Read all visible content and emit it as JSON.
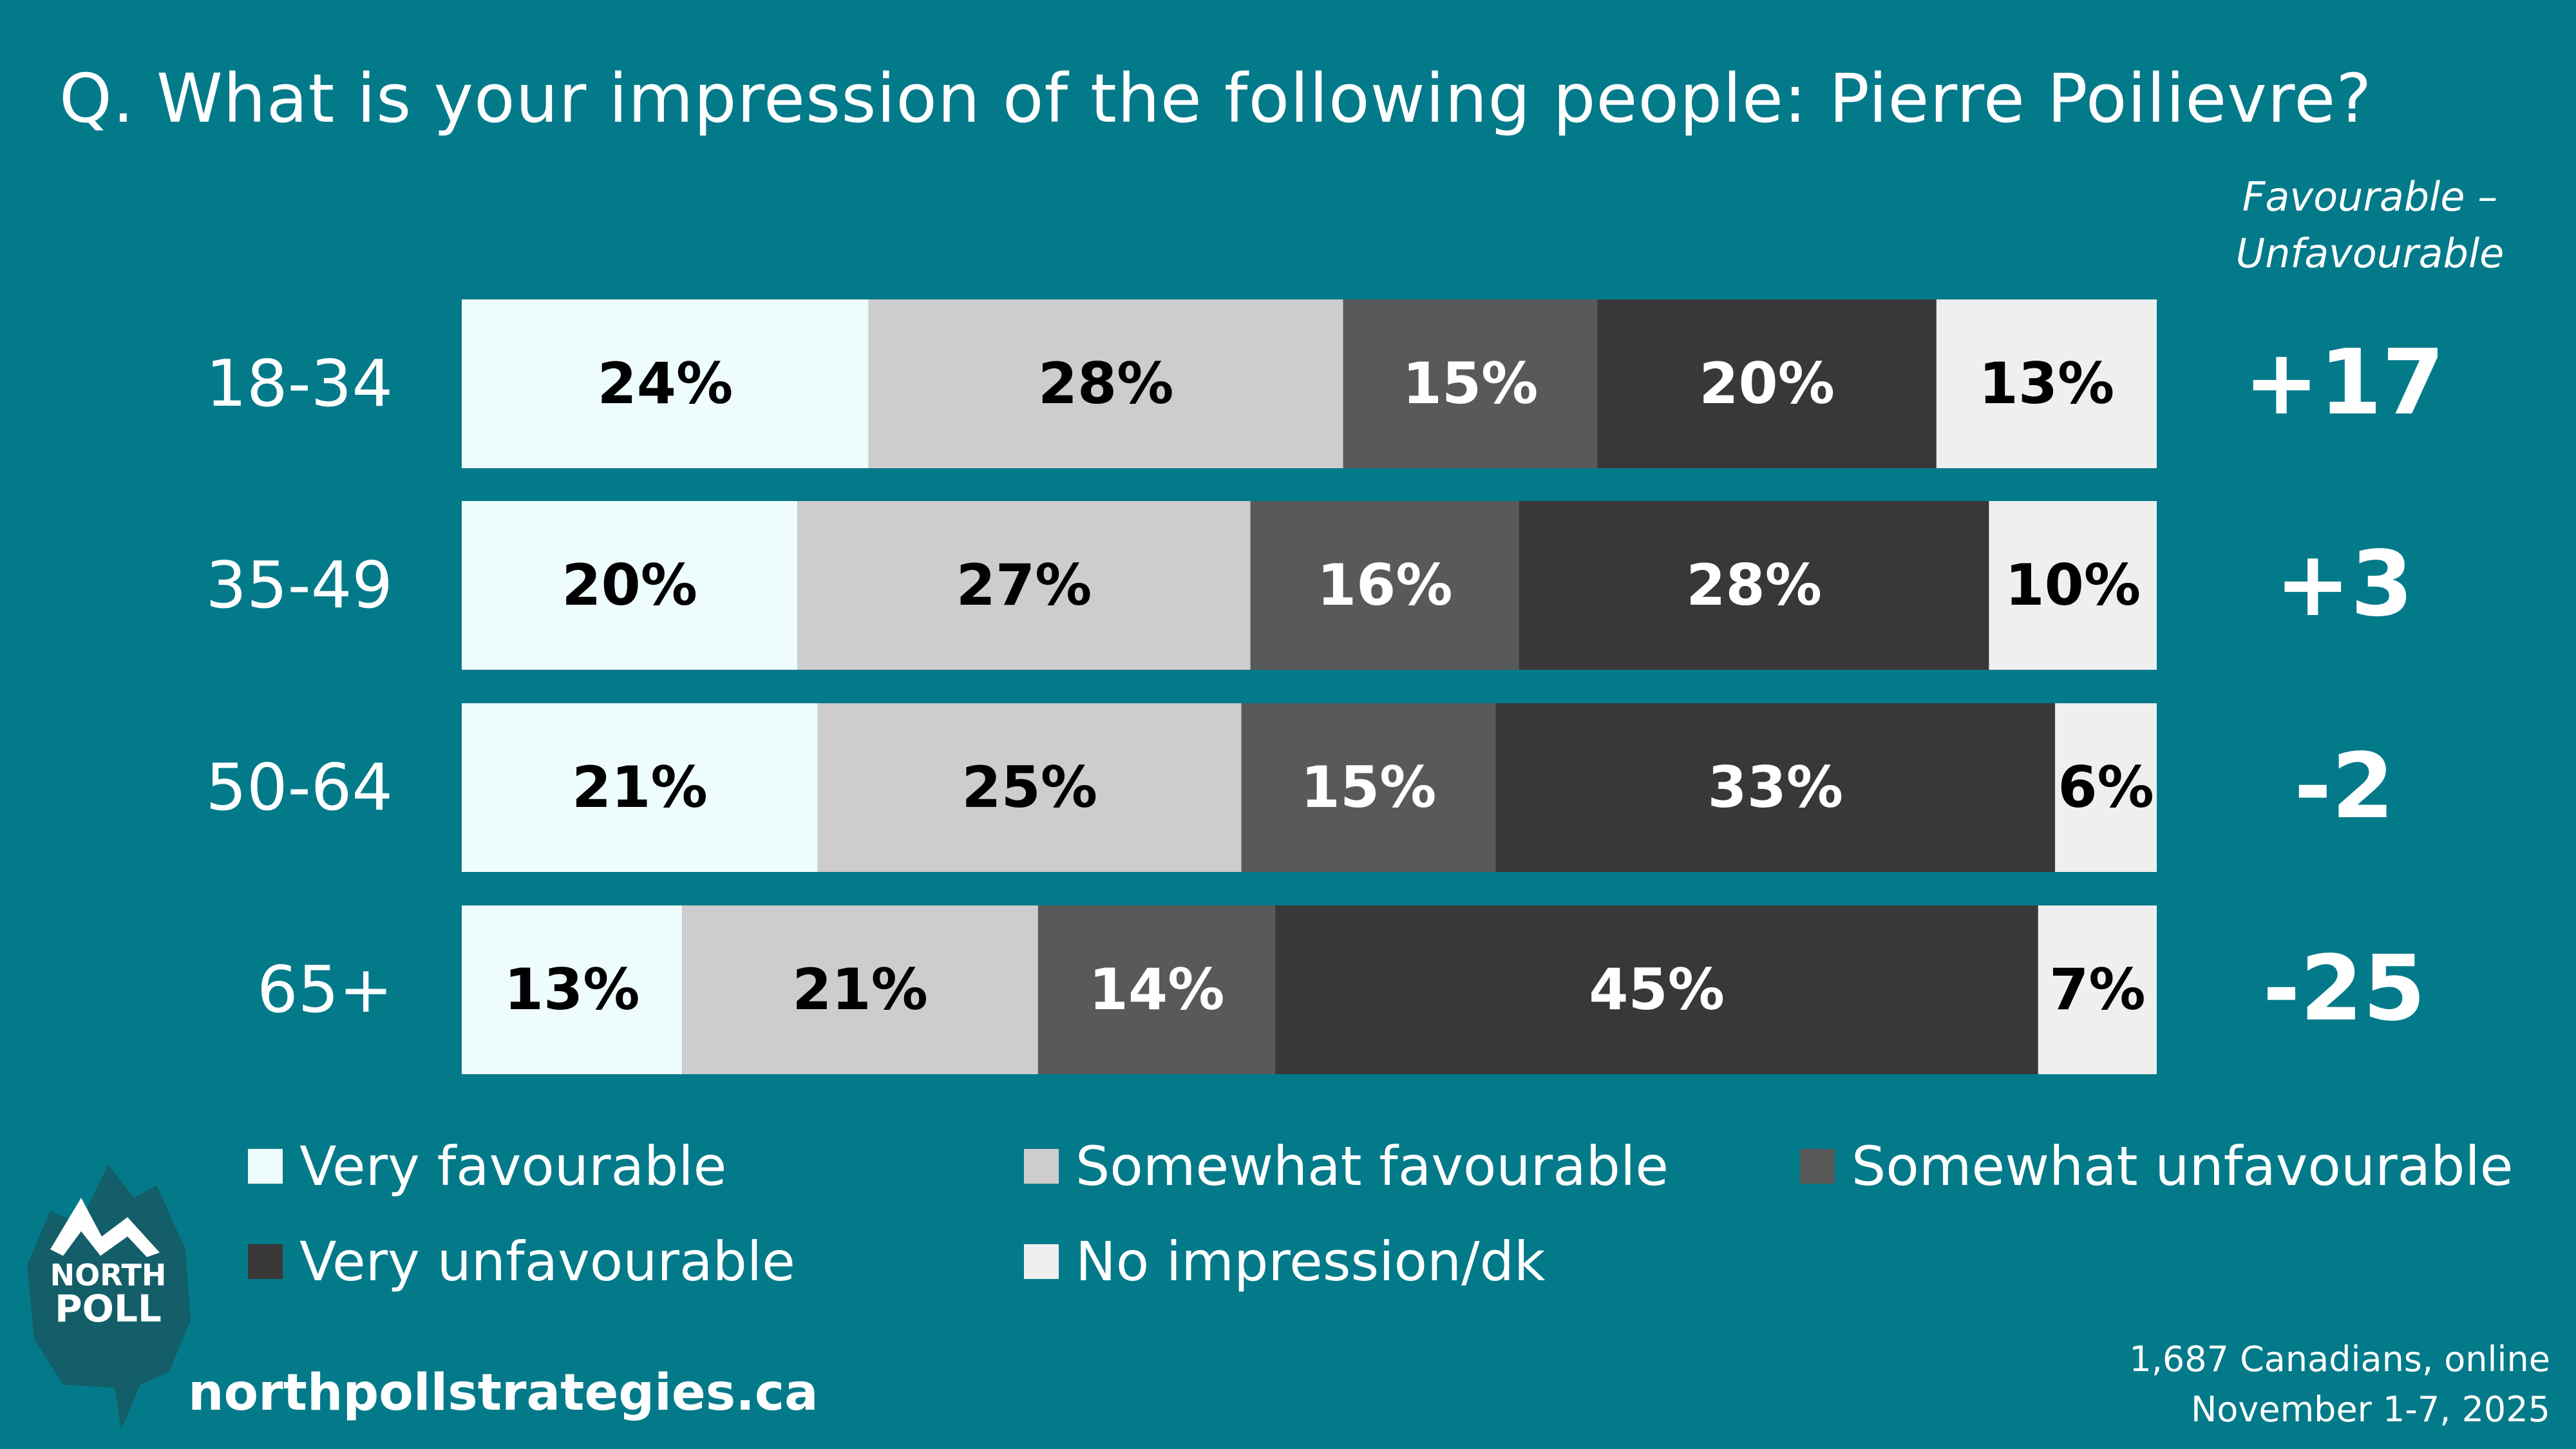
{
  "title": "Q. What is your impression of the following people: Pierre Poilievre?",
  "net_header": {
    "line1": "Favourable –",
    "line2": "Unfavourable"
  },
  "colors": {
    "background": "#037a8a",
    "very_favourable": "#effcfd",
    "somewhat_favourable": "#cecccd",
    "somewhat_unfavourable": "#595959",
    "very_unfavourable": "#393737",
    "no_impression": "#efefef"
  },
  "chart_data": {
    "type": "bar",
    "orientation": "horizontal",
    "stacked": true,
    "categories": [
      "18-34",
      "35-49",
      "50-64",
      "65+"
    ],
    "series": [
      {
        "name": "Very favourable",
        "values": [
          24,
          20,
          21,
          13
        ],
        "color": "#effcfd",
        "label_color": "#000000"
      },
      {
        "name": "Somewhat favourable",
        "values": [
          28,
          27,
          25,
          21
        ],
        "color": "#cecccd",
        "label_color": "#000000"
      },
      {
        "name": "Somewhat unfavourable",
        "values": [
          15,
          16,
          15,
          14
        ],
        "color": "#595959",
        "label_color": "#ffffff"
      },
      {
        "name": "Very unfavourable",
        "values": [
          20,
          28,
          33,
          45
        ],
        "color": "#393737",
        "label_color": "#ffffff"
      },
      {
        "name": "No impression/dk",
        "values": [
          13,
          10,
          6,
          7
        ],
        "color": "#efefef",
        "label_color": "#000000"
      }
    ],
    "value_labels": [
      [
        "24%",
        "28%",
        "15%",
        "20%",
        "13%"
      ],
      [
        "20%",
        "27%",
        "16%",
        "28%",
        "10%"
      ],
      [
        "21%",
        "25%",
        "15%",
        "33%",
        "6%"
      ],
      [
        "13%",
        "21%",
        "14%",
        "45%",
        "7%"
      ]
    ],
    "net_values": [
      "+17",
      "+3",
      "-2",
      "-25"
    ],
    "legend_position": "bottom",
    "grid": false
  },
  "legend": [
    {
      "label": "Very favourable",
      "color": "#effcfd"
    },
    {
      "label": "Somewhat favourable",
      "color": "#cecccd"
    },
    {
      "label": "Somewhat unfavourable",
      "color": "#595959"
    },
    {
      "label": "Very unfavourable",
      "color": "#393737"
    },
    {
      "label": "No impression/dk",
      "color": "#efefef"
    }
  ],
  "logo": {
    "line1": "NORTH",
    "line2": "POLL"
  },
  "website": "northpollstrategies.ca",
  "sample": {
    "line1": "1,687 Canadians, online",
    "line2": "November 1-7, 2025"
  }
}
